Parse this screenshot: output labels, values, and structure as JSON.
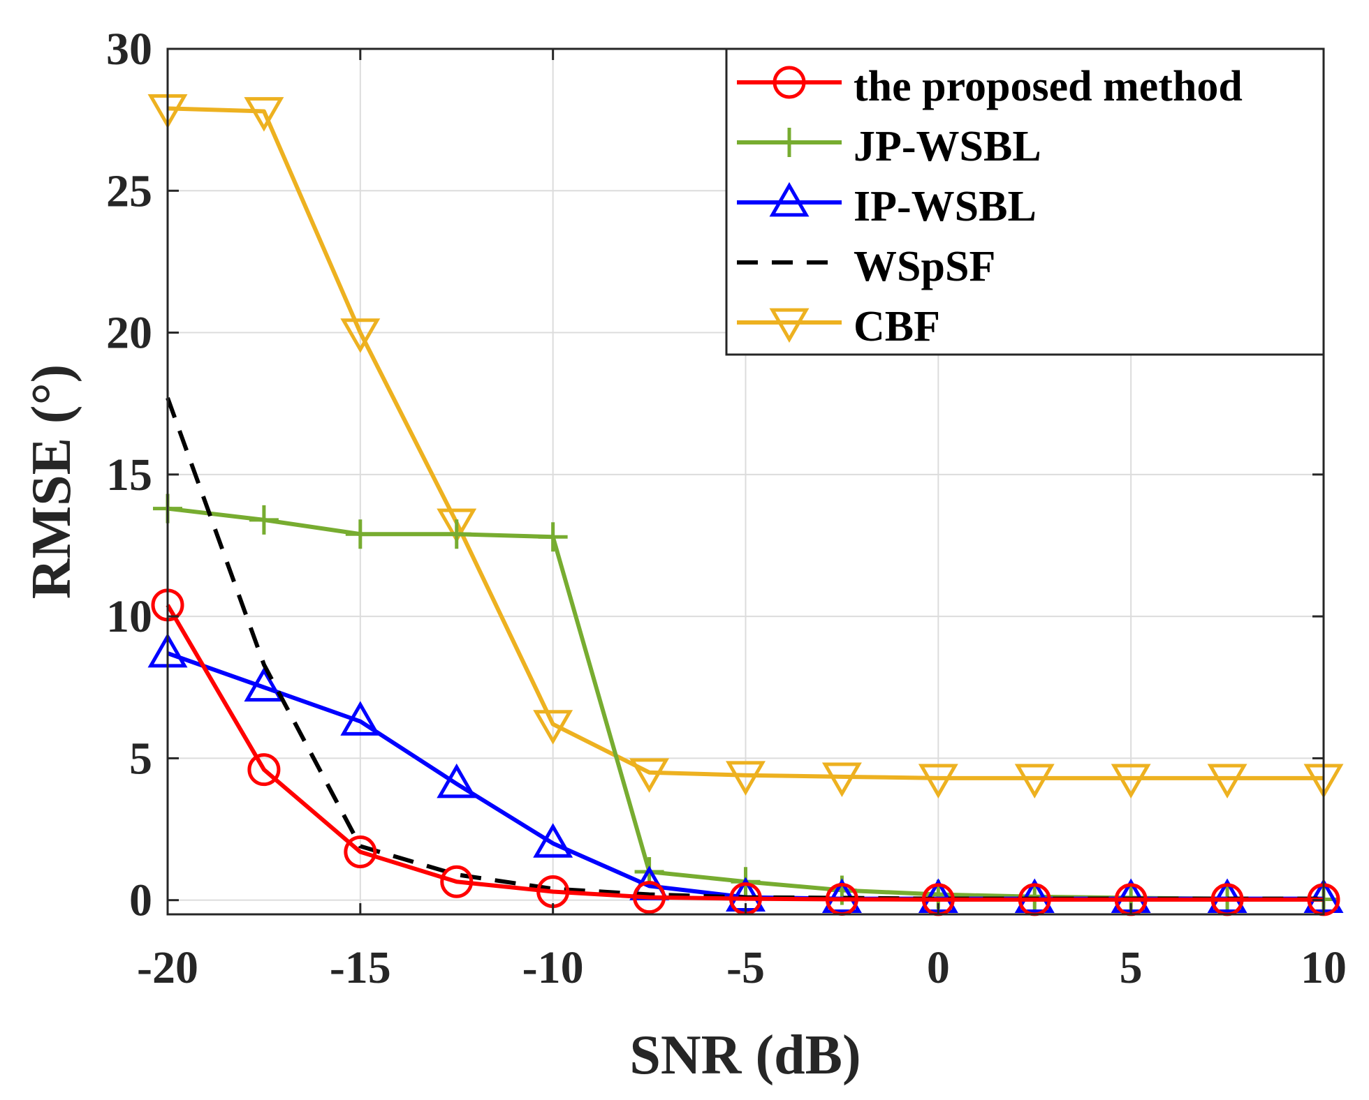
{
  "chart_data": {
    "type": "line",
    "title": "",
    "xlabel": "SNR (dB)",
    "ylabel": "RMSE (°)",
    "xlim": [
      -20,
      10
    ],
    "ylim": [
      -0.5,
      30
    ],
    "x": [
      -20,
      -17.5,
      -15,
      -12.5,
      -10,
      -7.5,
      -5,
      -2.5,
      0,
      2.5,
      5,
      7.5,
      10
    ],
    "xticks": [
      -20,
      -15,
      -10,
      -5,
      0,
      5,
      10
    ],
    "xtick_labels": [
      "-20",
      "-15",
      "-10",
      "-5",
      "0",
      "5",
      "10"
    ],
    "yticks": [
      0,
      5,
      10,
      15,
      20,
      25,
      30
    ],
    "ytick_labels": [
      "0",
      "5",
      "10",
      "15",
      "20",
      "25",
      "30"
    ],
    "grid": true,
    "legend_position": "top-right",
    "series": [
      {
        "name": "the proposed method",
        "color": "#ff0000",
        "marker": "circle",
        "dash": "solid",
        "values": [
          10.4,
          4.6,
          1.7,
          0.65,
          0.3,
          0.1,
          0.05,
          0.03,
          0.02,
          0.02,
          0.02,
          0.02,
          0.02
        ]
      },
      {
        "name": "JP-WSBL",
        "color": "#77ac30",
        "marker": "plus",
        "dash": "solid",
        "values": [
          13.8,
          13.4,
          12.9,
          12.9,
          12.8,
          1.0,
          0.65,
          0.35,
          0.2,
          0.12,
          0.08,
          0.05,
          0.03
        ]
      },
      {
        "name": "IP-WSBL",
        "color": "#0000ff",
        "marker": "triangle-up",
        "dash": "solid",
        "values": [
          8.7,
          7.5,
          6.3,
          4.1,
          2.0,
          0.5,
          0.1,
          0.05,
          0.05,
          0.05,
          0.05,
          0.05,
          0.05
        ]
      },
      {
        "name": "WSpSF",
        "color": "#000000",
        "marker": "none",
        "dash": "dashed",
        "values": [
          17.7,
          8.3,
          1.9,
          0.9,
          0.4,
          0.2,
          0.1,
          0.08,
          0.05,
          0.05,
          0.05,
          0.05,
          0.05
        ]
      },
      {
        "name": "CBF",
        "color": "#edb120",
        "marker": "triangle-down",
        "dash": "solid",
        "values": [
          27.9,
          27.8,
          20.0,
          13.3,
          6.2,
          4.5,
          4.4,
          4.35,
          4.3,
          4.3,
          4.3,
          4.3,
          4.3
        ]
      }
    ]
  }
}
